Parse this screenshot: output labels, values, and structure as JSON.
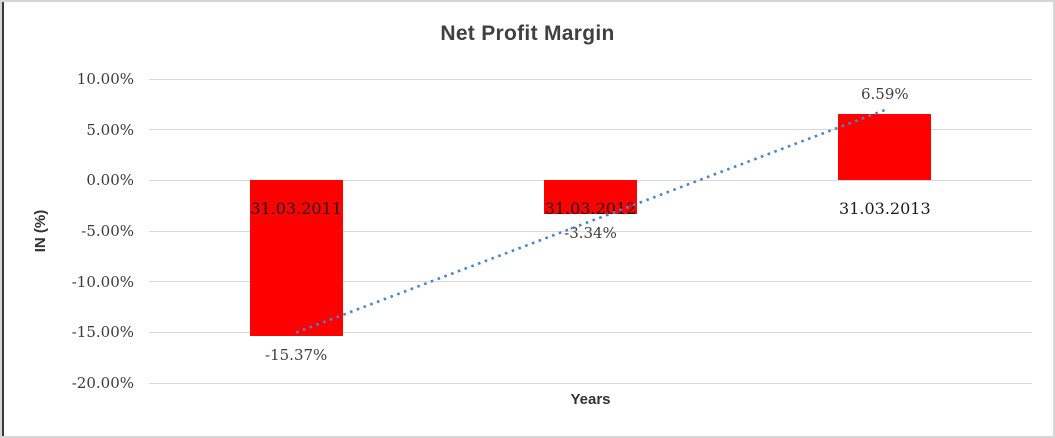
{
  "window": {
    "background": "#FFFFFF",
    "frame_border_color": "#D6D6D6",
    "left_edge_color": "#3A3A3A"
  },
  "chart_data": {
    "type": "bar",
    "title": "Net Profit Margin",
    "xlabel": "Years",
    "ylabel": "IN (%)",
    "categories": [
      "31.03.2011",
      "31.03.2012",
      "31.03.2013"
    ],
    "values": [
      -15.37,
      -3.34,
      6.59
    ],
    "data_labels": [
      "-15.37%",
      "-3.34%",
      "6.59%"
    ],
    "ylim": [
      -20,
      10
    ],
    "ytick_step": 5,
    "ytick_labels": [
      "10.00%",
      "5.00%",
      "0.00%",
      "-5.00%",
      "-10.00%",
      "-15.00%",
      "-20.00%"
    ],
    "grid": true,
    "legend": "none",
    "bar_color": "#FF0000",
    "gridline_color": "#D9D9D9",
    "title_color": "#404040",
    "tick_label_color": "#3A3A3A",
    "category_label_color": "#1C1C1C",
    "data_label_color": "#3F3F3F",
    "trendline": {
      "type": "linear",
      "style": "dotted",
      "color": "#4A86C6",
      "start_value": -15.02,
      "end_value": 6.94
    }
  }
}
